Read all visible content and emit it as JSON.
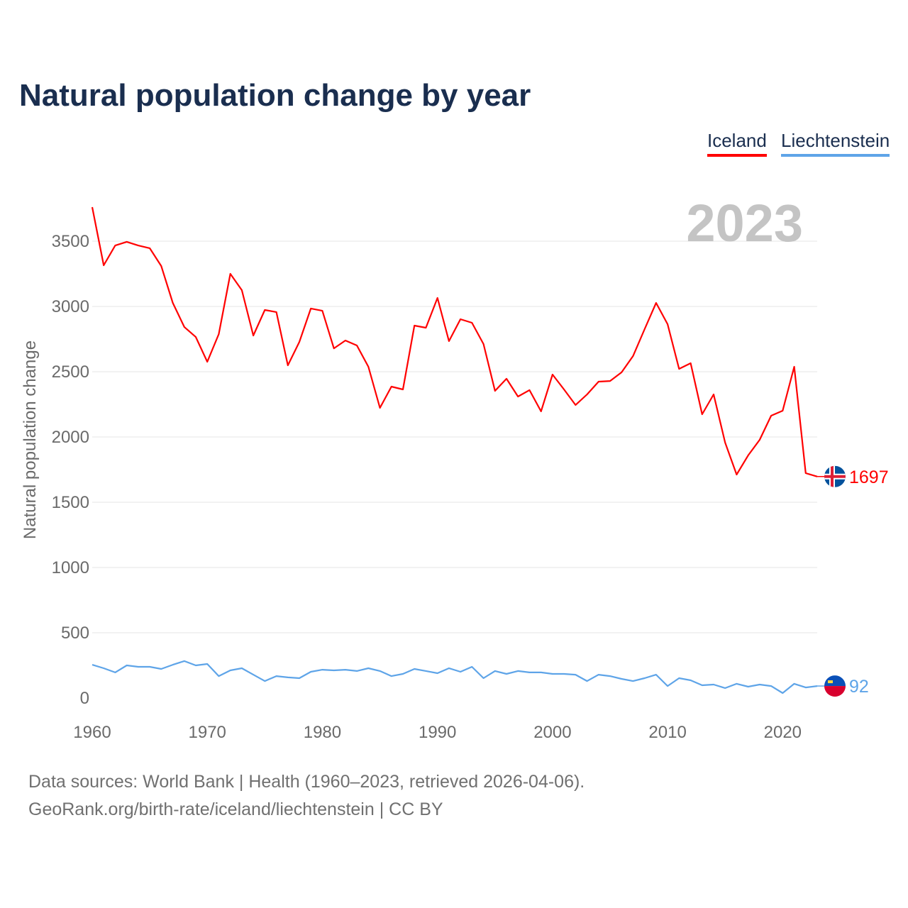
{
  "chart_data": {
    "type": "line",
    "title": "Natural population change by year",
    "xlabel": "",
    "ylabel": "Natural population change",
    "year_label": "2023",
    "xlim": [
      1960,
      2023
    ],
    "ylim": [
      0,
      3800
    ],
    "yticks": [
      0,
      500,
      1000,
      1500,
      2000,
      2500,
      3000,
      3500
    ],
    "xticks": [
      1960,
      1970,
      1980,
      1990,
      2000,
      2010,
      2020
    ],
    "grid": true,
    "legend_position": "top-right",
    "x": [
      1960,
      1961,
      1962,
      1963,
      1964,
      1965,
      1966,
      1967,
      1968,
      1969,
      1970,
      1971,
      1972,
      1973,
      1974,
      1975,
      1976,
      1977,
      1978,
      1979,
      1980,
      1981,
      1982,
      1983,
      1984,
      1985,
      1986,
      1987,
      1988,
      1989,
      1990,
      1991,
      1992,
      1993,
      1994,
      1995,
      1996,
      1997,
      1998,
      1999,
      2000,
      2001,
      2002,
      2003,
      2004,
      2005,
      2006,
      2007,
      2008,
      2009,
      2010,
      2011,
      2012,
      2013,
      2014,
      2015,
      2016,
      2017,
      2018,
      2019,
      2020,
      2021,
      2022,
      2023
    ],
    "series": [
      {
        "name": "Iceland",
        "color": "#ff0000",
        "end_label": "1697",
        "values": [
          3761,
          3315,
          3467,
          3495,
          3467,
          3446,
          3310,
          3027,
          2843,
          2766,
          2576,
          2788,
          3250,
          3125,
          2777,
          2973,
          2957,
          2549,
          2728,
          2984,
          2967,
          2679,
          2739,
          2701,
          2538,
          2223,
          2386,
          2364,
          2853,
          2837,
          3065,
          2734,
          2902,
          2875,
          2712,
          2353,
          2446,
          2310,
          2359,
          2196,
          2478,
          2364,
          2245,
          2326,
          2424,
          2429,
          2495,
          2620,
          2826,
          3027,
          2864,
          2522,
          2565,
          2174,
          2326,
          1957,
          1712,
          1859,
          1978,
          2163,
          2201,
          2538,
          1723,
          1697
        ]
      },
      {
        "name": "Liechtenstein",
        "color": "#5ea4e8",
        "end_label": "92",
        "values": [
          255,
          228,
          196,
          250,
          239,
          239,
          223,
          255,
          283,
          250,
          261,
          168,
          212,
          228,
          179,
          130,
          168,
          158,
          152,
          201,
          217,
          212,
          217,
          207,
          228,
          207,
          168,
          185,
          223,
          207,
          190,
          228,
          201,
          239,
          152,
          207,
          185,
          207,
          196,
          196,
          185,
          185,
          179,
          130,
          179,
          168,
          147,
          130,
          152,
          179,
          92,
          152,
          136,
          98,
          103,
          76,
          109,
          87,
          103,
          92,
          38,
          109,
          81,
          92
        ]
      }
    ]
  },
  "sources": {
    "line1": "Data sources: World Bank | Health (1960–2023, retrieved 2026-04-06).",
    "line2": "GeoRank.org/birth-rate/iceland/liechtenstein | CC BY"
  }
}
